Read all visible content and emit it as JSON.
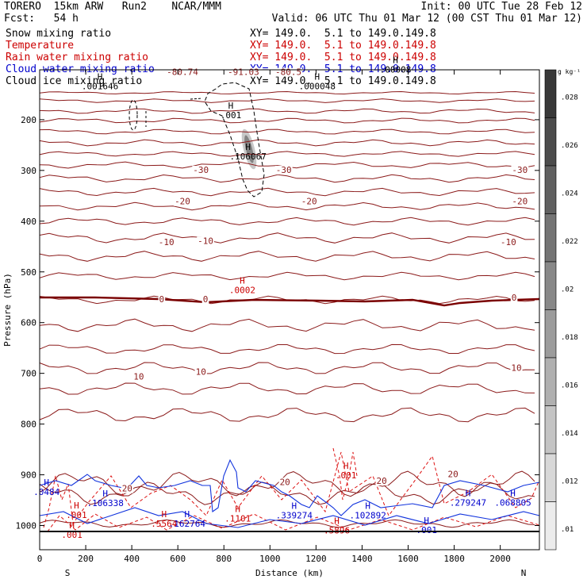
{
  "header": {
    "model": "TORERO  15km ARW   Run2    NCAR/MMM",
    "init": "Init: 00 UTC Tue 28 Feb 12",
    "fcst": "Fcst:   54 h",
    "valid": "Valid: 06 UTC Thu 01 Mar 12 (00 CST Thu 01 Mar 12)",
    "fields": [
      {
        "name": "Snow mixing ratio",
        "xy": "",
        "color": "#000000"
      },
      {
        "name": "Temperature",
        "xy": "XY= 149.0.  5.1 to 149.0.149.8",
        "color": "#cc0000"
      },
      {
        "name": "Rain water mixing ratio",
        "xy": "XY= 149.0.  5.1 to 149.0.149.8",
        "color": "#cc0000"
      },
      {
        "name": "Cloud water mixing ratio",
        "xy": "XY= 149.0.  5.1 to 149.0.149.8",
        "color": "#0000cc"
      },
      {
        "name": "Cloud ice mixing ratio",
        "xy": "XY= 149.0.  5.1 to 149.0.149.8",
        "color": "#000000"
      }
    ],
    "xy_black": "XY= 149.0.  5.1 to 149.0.149.8"
  },
  "chart_data": {
    "type": "contour cross-section",
    "xlabel": "Distance (km)",
    "ylabel": "Pressure (hPa)",
    "xlim": [
      0,
      2170
    ],
    "ylim": [
      1015,
      100
    ],
    "xticks": [
      0,
      200,
      400,
      600,
      800,
      1000,
      1200,
      1400,
      1600,
      1800,
      2000
    ],
    "yticks": [
      200,
      300,
      400,
      500,
      600,
      700,
      800,
      900,
      1000
    ],
    "endpoints": {
      "left": "S",
      "right": "N"
    },
    "colorbar": {
      "unit": "g kg⁻¹",
      "labels": [
        ".028",
        ".026",
        ".024",
        ".022",
        ".02",
        ".018",
        ".016",
        ".014",
        ".012",
        ".01"
      ],
      "grays": [
        "#383838",
        "#4c4c4c",
        "#606060",
        "#747474",
        "#888888",
        "#9c9c9c",
        "#b0b0b0",
        "#c4c4c4",
        "#d8d8d8",
        "#ececec"
      ]
    },
    "temperature_labels": [
      {
        "text": "-80.74",
        "x": 620,
        "p": 112
      },
      {
        "text": "-91.03",
        "x": 885,
        "p": 112
      },
      {
        "text": "-80.5",
        "x": 1080,
        "p": 112
      },
      {
        "text": "-30",
        "x": 700,
        "p": 305
      },
      {
        "text": "-30",
        "x": 1060,
        "p": 305
      },
      {
        "text": "-30",
        "x": 2085,
        "p": 305
      },
      {
        "text": "-20",
        "x": 620,
        "p": 367
      },
      {
        "text": "-20",
        "x": 1170,
        "p": 367
      },
      {
        "text": "-20",
        "x": 2085,
        "p": 367
      },
      {
        "text": "-10",
        "x": 550,
        "p": 447
      },
      {
        "text": "-10",
        "x": 720,
        "p": 445
      },
      {
        "text": "-10",
        "x": 2035,
        "p": 447
      },
      {
        "text": "0",
        "x": 530,
        "p": 560
      },
      {
        "text": "0",
        "x": 720,
        "p": 560
      },
      {
        "text": "0",
        "x": 2060,
        "p": 557
      },
      {
        "text": "10",
        "x": 430,
        "p": 712
      },
      {
        "text": "10",
        "x": 700,
        "p": 703
      },
      {
        "text": "10",
        "x": 2070,
        "p": 695
      },
      {
        "text": "20",
        "x": 380,
        "p": 933
      },
      {
        "text": "20",
        "x": 1065,
        "p": 920
      },
      {
        "text": "20",
        "x": 1485,
        "p": 918
      },
      {
        "text": "20",
        "x": 1795,
        "p": 905
      }
    ],
    "maxima": [
      {
        "text": ".001646",
        "x": 262,
        "p": 140,
        "color": "#000000"
      },
      {
        "text": ".001",
        "x": 830,
        "p": 197,
        "color": "#000000"
      },
      {
        "text": ".106067",
        "x": 905,
        "p": 278,
        "color": "#000000"
      },
      {
        "text": ".000048",
        "x": 1205,
        "p": 140,
        "color": "#000000"
      },
      {
        "text": ".00008",
        "x": 1545,
        "p": 107,
        "color": "#000000"
      },
      {
        "text": ".0002",
        "x": 880,
        "p": 542,
        "color": "#cc0000"
      },
      {
        "text": ".001",
        "x": 1330,
        "p": 907,
        "color": "#cc0000"
      },
      {
        "text": ".001",
        "x": 160,
        "p": 985,
        "color": "#cc0000"
      },
      {
        "text": ".001",
        "x": 140,
        "p": 1024,
        "color": "#cc0000"
      },
      {
        "text": ".1101",
        "x": 860,
        "p": 992,
        "color": "#cc0000"
      },
      {
        "text": ".5896",
        "x": 1290,
        "p": 1016,
        "color": "#cc0000"
      },
      {
        "text": ".5564",
        "x": 540,
        "p": 1002,
        "color": "#cc0000"
      },
      {
        "text": ".0484",
        "x": 30,
        "p": 940,
        "color": "#0000cc"
      },
      {
        "text": ".106338",
        "x": 285,
        "p": 962,
        "color": "#0000cc"
      },
      {
        "text": ".162764",
        "x": 640,
        "p": 1002,
        "color": "#0000cc"
      },
      {
        "text": ".339274",
        "x": 1105,
        "p": 986,
        "color": "#0000cc"
      },
      {
        "text": ".102892",
        "x": 1425,
        "p": 986,
        "color": "#0000cc"
      },
      {
        "text": ".001",
        "x": 1680,
        "p": 1015,
        "color": "#0000cc"
      },
      {
        "text": ".279247",
        "x": 1860,
        "p": 961,
        "color": "#0000cc"
      },
      {
        "text": ".068805",
        "x": 2055,
        "p": 961,
        "color": "#0000cc"
      }
    ]
  }
}
